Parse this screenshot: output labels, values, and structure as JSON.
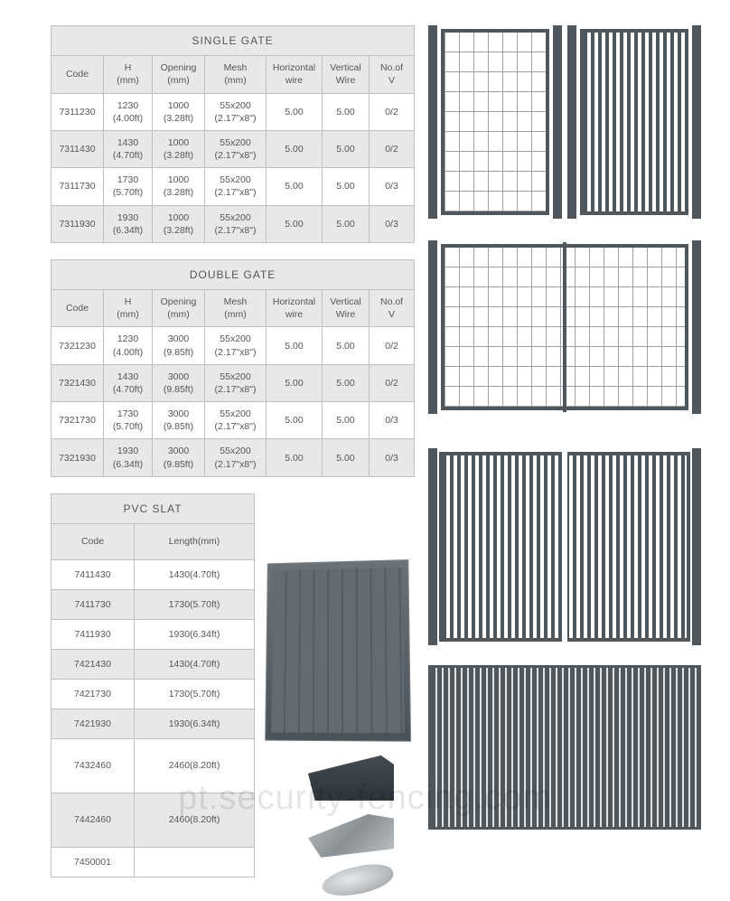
{
  "colors": {
    "table_border": "#c0c0c0",
    "header_bg": "#e8e8e8",
    "row_alt_bg": "#e8e8e8",
    "text": "#555555",
    "steel": "#4f565c"
  },
  "single_gate": {
    "title": "SINGLE GATE",
    "columns": [
      "Code",
      "H\n(mm)",
      "Opening\n(mm)",
      "Mesh\n(mm)",
      "Horizontal\nwire",
      "Vertical\nWire",
      "No.of\nV"
    ],
    "rows": [
      [
        "7311230",
        "1230\n(4.00ft)",
        "1000\n(3.28ft)",
        "55x200\n(2.17\"x8\")",
        "5.00",
        "5.00",
        "0/2"
      ],
      [
        "7311430",
        "1430\n(4.70ft)",
        "1000\n(3.28ft)",
        "55x200\n(2.17\"x8\")",
        "5.00",
        "5.00",
        "0/2"
      ],
      [
        "7311730",
        "1730\n(5.70ft)",
        "1000\n(3.28ft)",
        "55x200\n(2.17\"x8\")",
        "5.00",
        "5.00",
        "0/3"
      ],
      [
        "7311930",
        "1930\n(6.34ft)",
        "1000\n(3.28ft)",
        "55x200\n(2.17\"x8\")",
        "5.00",
        "5.00",
        "0/3"
      ]
    ]
  },
  "double_gate": {
    "title": "DOUBLE GATE",
    "columns": [
      "Code",
      "H\n(mm)",
      "Opening\n(mm)",
      "Mesh\n(mm)",
      "Horizontal\nwire",
      "Vertical\nWire",
      "No.of\nV"
    ],
    "rows": [
      [
        "7321230",
        "1230\n(4.00ft)",
        "3000\n(9.85ft)",
        "55x200\n(2.17\"x8\")",
        "5.00",
        "5.00",
        "0/2"
      ],
      [
        "7321430",
        "1430\n(4.70ft)",
        "3000\n(9.85ft)",
        "55x200\n(2.17\"x8\")",
        "5.00",
        "5.00",
        "0/2"
      ],
      [
        "7321730",
        "1730\n(5.70ft)",
        "3000\n(9.85ft)",
        "55x200\n(2.17\"x8\")",
        "5.00",
        "5.00",
        "0/3"
      ],
      [
        "7321930",
        "1930\n(6.34ft)",
        "3000\n(9.85ft)",
        "55x200\n(2.17\"x8\")",
        "5.00",
        "5.00",
        "0/3"
      ]
    ]
  },
  "pvc_slat": {
    "title": "PVC SLAT",
    "columns": [
      "Code",
      "Length(mm)"
    ],
    "rows": [
      {
        "code": "7411430",
        "len": "1430(4.70ft)",
        "tall": false
      },
      {
        "code": "7411730",
        "len": "1730(5.70ft)",
        "tall": false
      },
      {
        "code": "7411930",
        "len": "1930(6.34ft)",
        "tall": false
      },
      {
        "code": "7421430",
        "len": "1430(4.70ft)",
        "tall": false
      },
      {
        "code": "7421730",
        "len": "1730(5.70ft)",
        "tall": false
      },
      {
        "code": "7421930",
        "len": "1930(6.34ft)",
        "tall": false
      },
      {
        "code": "7432460",
        "len": "2460(8.20ft)",
        "tall": true
      },
      {
        "code": "7442460",
        "len": "2460(8.20ft)",
        "tall": true
      },
      {
        "code": "7450001",
        "len": "",
        "tall": false
      }
    ]
  },
  "col_widths_7": [
    "58px",
    "54px",
    "58px",
    "68px",
    "62px",
    "52px",
    "50px"
  ],
  "col_widths_2": [
    "92px",
    "133px"
  ],
  "watermark": "pt.security-fencing.com"
}
